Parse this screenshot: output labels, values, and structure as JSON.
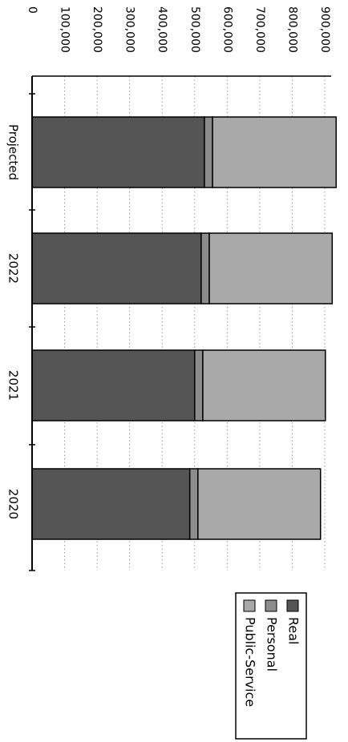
{
  "chart_data": {
    "type": "bar",
    "stacked": true,
    "orientation": "horizontal",
    "categories": [
      "Projected",
      "2022",
      "2021",
      "2020"
    ],
    "series": [
      {
        "name": "Real",
        "values": [
          530000,
          520000,
          500000,
          485000
        ]
      },
      {
        "name": "Personal",
        "values": [
          25000,
          25000,
          25000,
          25000
        ]
      },
      {
        "name": "Public-Service",
        "values": [
          380000,
          378000,
          377000,
          377000
        ]
      }
    ],
    "title": "",
    "xlabel": "",
    "ylabel": "",
    "xlim": [
      0,
      900000
    ],
    "ticks": [
      "0",
      "100,000",
      "200,000",
      "300,000",
      "400,000",
      "500,000",
      "600,000",
      "700,000",
      "800,000",
      "900,000"
    ],
    "tick_values": [
      0,
      100000,
      200000,
      300000,
      400000,
      500000,
      600000,
      700000,
      800000,
      900000
    ],
    "grid": true,
    "legend_position": "right",
    "colors": [
      "#555555",
      "#8c8c8c",
      "#a9a9a9"
    ]
  }
}
